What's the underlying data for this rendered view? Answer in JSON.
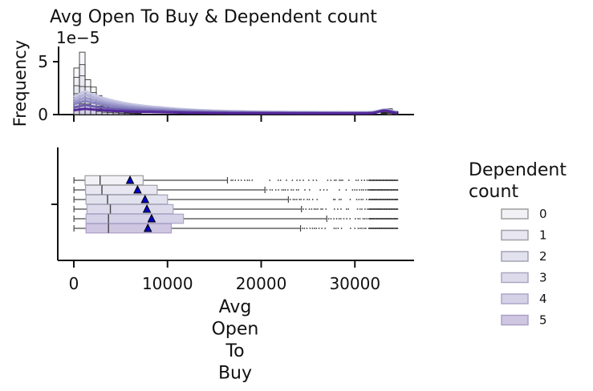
{
  "chart_data": {
    "type": "histogram+boxplot",
    "title": "Avg Open To Buy & Dependent count",
    "histogram": {
      "ylabel": "Frequency",
      "y_offset_text": "1e−5",
      "yticks": [
        0,
        5
      ],
      "ylim": [
        0,
        6.3
      ],
      "xlim": [
        -1500,
        36000
      ],
      "bin_width": 600,
      "bins_start": 0,
      "top_density": [
        4.4,
        5.9,
        3.3,
        2.6,
        1.8,
        1.3,
        1.2,
        0.95,
        0.75,
        0.55,
        0.45,
        0.35
      ]
    },
    "boxplot": {
      "xlabel_words": [
        "Avg",
        "Open",
        "To",
        "Buy"
      ],
      "xticks": [
        0,
        10000,
        20000,
        30000
      ],
      "xtick_labels": [
        "0",
        "10000",
        "20000",
        "30000"
      ],
      "groups": [
        {
          "name": "0",
          "min": 14,
          "q1": 1200,
          "median": 2800,
          "q3": 7400,
          "whisker_high": 16400,
          "mean": 6000,
          "outlier_start": 16800
        },
        {
          "name": "1",
          "min": 14,
          "q1": 1250,
          "median": 3000,
          "q3": 8900,
          "whisker_high": 20400,
          "mean": 6800,
          "outlier_start": 20600
        },
        {
          "name": "2",
          "min": 14,
          "q1": 1300,
          "median": 3600,
          "q3": 10000,
          "whisker_high": 22900,
          "mean": 7600,
          "outlier_start": 23100
        },
        {
          "name": "3",
          "min": 14,
          "q1": 1400,
          "median": 3900,
          "q3": 10600,
          "whisker_high": 24300,
          "mean": 7800,
          "outlier_start": 24500
        },
        {
          "name": "4",
          "min": 14,
          "q1": 1300,
          "median": 3700,
          "q3": 11700,
          "whisker_high": 27000,
          "mean": 8300,
          "outlier_start": 27200
        },
        {
          "name": "5",
          "min": 14,
          "q1": 1300,
          "median": 3700,
          "q3": 10400,
          "whisker_high": 24200,
          "mean": 7900,
          "outlier_start": 24400
        }
      ]
    },
    "legend": {
      "title": "Dependent\ncount",
      "position": "right",
      "entries": [
        "0",
        "1",
        "2",
        "3",
        "4",
        "5"
      ]
    },
    "colors": {
      "groups": [
        "#f2f2f6",
        "#e8e7f1",
        "#e2e1ee",
        "#dddbeb",
        "#d5d1e7",
        "#cfc6e1"
      ],
      "edges": [
        "#9e9e9e",
        "#a0a0a8",
        "#a4a3b4",
        "#a9a6c0",
        "#aca6c8",
        "#ad9fc9"
      ],
      "kde": [
        "#c7c7e3",
        "#b4b3d8",
        "#9e9ccc",
        "#8a85c0",
        "#6e5fae",
        "#54279a"
      ],
      "mean_marker": "#0000cc"
    }
  }
}
